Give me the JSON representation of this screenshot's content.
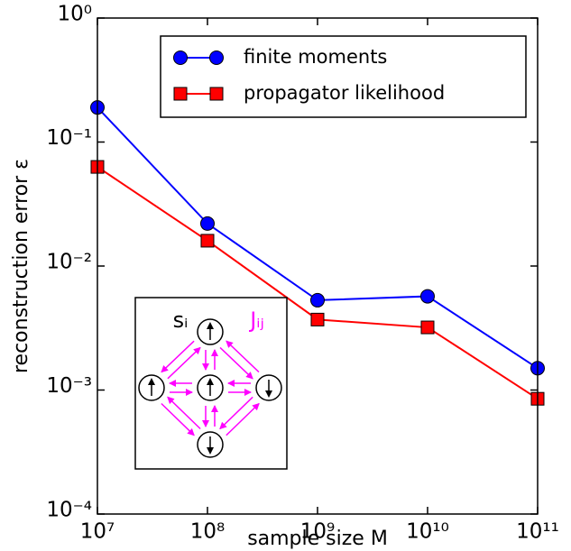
{
  "chart_data": {
    "type": "line",
    "x_label": "sample size M",
    "y_label": "reconstruction error ε",
    "xscale": "log",
    "yscale": "log",
    "x": [
      10000000,
      100000000,
      1000000000,
      10000000000,
      100000000000
    ],
    "series": [
      {
        "name": "finite moments",
        "color": "#0000ff",
        "marker": "circle",
        "values": [
          0.19,
          0.022,
          0.0053,
          0.0057,
          0.0015
        ]
      },
      {
        "name": "propagator likelihood",
        "color": "#ff0000",
        "marker": "square",
        "values": [
          0.063,
          0.016,
          0.0037,
          0.0032,
          0.00085
        ]
      }
    ],
    "xlim": [
      10000000,
      100000000000
    ],
    "ylim": [
      0.0001,
      1
    ],
    "xticks": [
      {
        "value": 10000000,
        "label": "10⁷"
      },
      {
        "value": 100000000,
        "label": "10⁸"
      },
      {
        "value": 1000000000,
        "label": "10⁹"
      },
      {
        "value": 10000000000,
        "label": "10¹⁰"
      },
      {
        "value": 100000000000,
        "label": "10¹¹"
      }
    ],
    "yticks": [
      {
        "value": 0.0001,
        "label": "10⁻⁴"
      },
      {
        "value": 0.001,
        "label": "10⁻³"
      },
      {
        "value": 0.01,
        "label": "10⁻²"
      },
      {
        "value": 0.1,
        "label": "10⁻¹"
      },
      {
        "value": 1,
        "label": "10⁰"
      }
    ],
    "legend": "upper right",
    "inset": {
      "spin_label": "sᵢ",
      "coupling_label": "Jᵢⱼ"
    }
  }
}
